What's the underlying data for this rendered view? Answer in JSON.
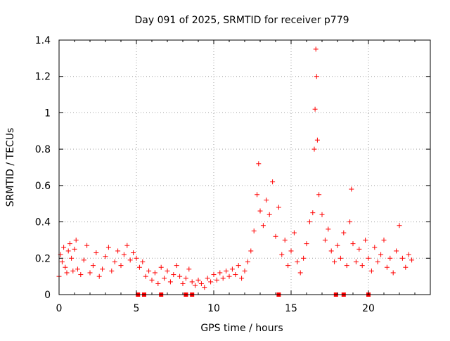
{
  "chart_data": {
    "type": "scatter",
    "title": "Day 091 of 2025, SRMTID for receiver p779",
    "xlabel": "GPS time / hours",
    "ylabel": "SRMTID / TECUs",
    "xlim": [
      0,
      24
    ],
    "ylim": [
      0,
      1.4
    ],
    "x_ticks": [
      "0",
      "5",
      "10",
      "15",
      "20"
    ],
    "x_tick_values": [
      0,
      5,
      10,
      15,
      20
    ],
    "y_ticks": [
      "0",
      "0.2",
      "0.4",
      "0.6",
      "0.8",
      "1",
      "1.2",
      "1.4"
    ],
    "y_tick_values": [
      0,
      0.2,
      0.4,
      0.6,
      0.8,
      1.0,
      1.2,
      1.4
    ],
    "grid": true,
    "marker": "plus",
    "color": "#ff0000",
    "series": [
      {
        "name": "SRMTID",
        "x": [
          0.0,
          0.1,
          0.2,
          0.3,
          0.4,
          0.5,
          0.6,
          0.7,
          0.8,
          0.9,
          1.0,
          1.1,
          1.2,
          1.4,
          1.6,
          1.8,
          2.0,
          2.2,
          2.4,
          2.6,
          2.8,
          3.0,
          3.2,
          3.4,
          3.6,
          3.8,
          4.0,
          4.2,
          4.4,
          4.6,
          4.8,
          5.0,
          5.2,
          5.4,
          5.6,
          5.8,
          6.0,
          6.2,
          6.4,
          6.6,
          6.8,
          7.0,
          7.2,
          7.4,
          7.6,
          7.8,
          8.0,
          8.2,
          8.4,
          8.6,
          8.8,
          9.0,
          9.2,
          9.4,
          9.6,
          9.8,
          10.0,
          10.2,
          10.4,
          10.6,
          10.8,
          11.0,
          11.2,
          11.4,
          11.6,
          11.8,
          12.0,
          12.2,
          12.4,
          12.6,
          12.8,
          12.9,
          13.0,
          13.2,
          13.4,
          13.6,
          13.8,
          14.0,
          14.2,
          14.4,
          14.6,
          14.8,
          15.0,
          15.2,
          15.4,
          15.6,
          15.8,
          16.0,
          16.2,
          16.4,
          16.5,
          16.55,
          16.6,
          16.65,
          16.7,
          16.8,
          17.0,
          17.2,
          17.4,
          17.6,
          17.8,
          18.0,
          18.2,
          18.4,
          18.6,
          18.8,
          18.9,
          19.0,
          19.2,
          19.4,
          19.6,
          19.8,
          20.0,
          20.2,
          20.4,
          20.6,
          20.8,
          21.0,
          21.2,
          21.4,
          21.6,
          21.8,
          22.0,
          22.2,
          22.4,
          22.6,
          22.8
        ],
        "y": [
          0.1,
          0.22,
          0.18,
          0.26,
          0.15,
          0.12,
          0.24,
          0.28,
          0.2,
          0.13,
          0.25,
          0.3,
          0.14,
          0.11,
          0.19,
          0.27,
          0.12,
          0.16,
          0.23,
          0.1,
          0.14,
          0.21,
          0.26,
          0.13,
          0.18,
          0.24,
          0.16,
          0.22,
          0.27,
          0.19,
          0.23,
          0.2,
          0.15,
          0.18,
          0.1,
          0.13,
          0.08,
          0.12,
          0.06,
          0.15,
          0.09,
          0.13,
          0.07,
          0.11,
          0.16,
          0.1,
          0.06,
          0.09,
          0.14,
          0.07,
          0.05,
          0.08,
          0.06,
          0.04,
          0.09,
          0.07,
          0.11,
          0.08,
          0.12,
          0.09,
          0.13,
          0.1,
          0.14,
          0.11,
          0.16,
          0.09,
          0.13,
          0.18,
          0.24,
          0.35,
          0.55,
          0.72,
          0.46,
          0.38,
          0.52,
          0.44,
          0.62,
          0.32,
          0.48,
          0.22,
          0.3,
          0.16,
          0.24,
          0.34,
          0.18,
          0.12,
          0.2,
          0.28,
          0.4,
          0.45,
          0.8,
          1.02,
          1.35,
          1.2,
          0.85,
          0.55,
          0.44,
          0.3,
          0.36,
          0.24,
          0.18,
          0.27,
          0.2,
          0.34,
          0.16,
          0.4,
          0.58,
          0.28,
          0.18,
          0.25,
          0.16,
          0.3,
          0.2,
          0.13,
          0.26,
          0.18,
          0.22,
          0.3,
          0.15,
          0.2,
          0.12,
          0.24,
          0.38,
          0.2,
          0.15,
          0.22,
          0.19
        ],
        "gap_markers_x": [
          5.1,
          5.5,
          6.6,
          8.2,
          8.6,
          14.2,
          17.9,
          18.4,
          20.0
        ]
      }
    ]
  }
}
